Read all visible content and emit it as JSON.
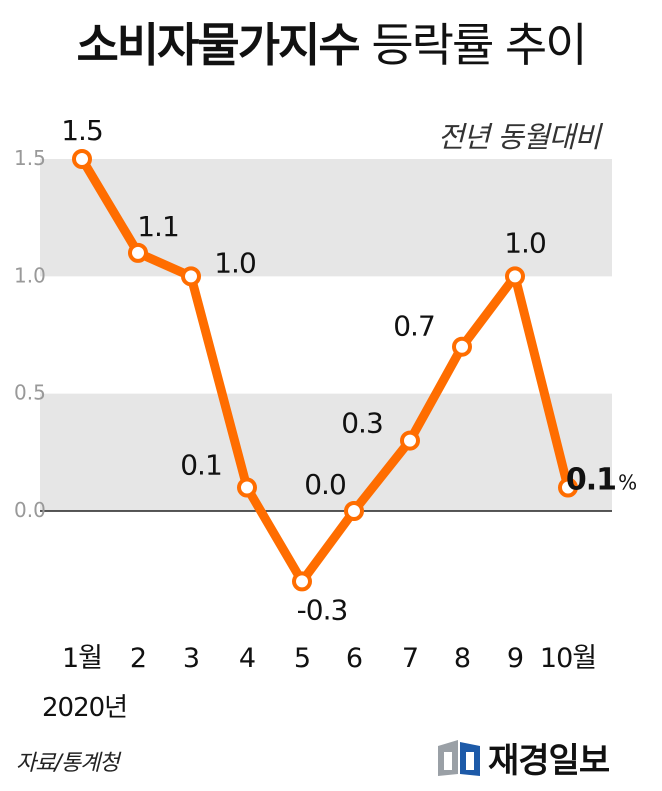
{
  "title_bold": "소비자물가지수",
  "title_light": "등락률 추이",
  "subtitle": "전년 동월대비",
  "source": "자료/통계청",
  "brand": "재경일보",
  "colors": {
    "line": "#ff6d00",
    "band": "#e6e6e6",
    "tick_label": "#999999"
  },
  "chart_data": {
    "type": "line",
    "title": "소비자물가지수 등락률 추이",
    "subtitle": "전년 동월대비",
    "categories": [
      "1월",
      "2",
      "3",
      "4",
      "5",
      "6",
      "7",
      "8",
      "9",
      "10월"
    ],
    "year_label": "2020년",
    "series": [
      {
        "values": [
          1.5,
          1.1,
          1.0,
          0.1,
          -0.3,
          0.0,
          0.3,
          0.7,
          1.0,
          0.1
        ]
      }
    ],
    "data_labels": [
      "1.5",
      "1.1",
      "1.0",
      "0.1",
      "-0.3",
      "0.0",
      "0.3",
      "0.7",
      "1.0",
      "0.1"
    ],
    "last_label_unit": "%",
    "yticks": [
      0.0,
      0.5,
      1.0,
      1.5
    ],
    "ytick_labels": [
      "0.0",
      "0.5",
      "1.0",
      "1.5"
    ],
    "ylim": [
      -0.35,
      1.5
    ],
    "grid": "alternating bands",
    "legend": "none"
  }
}
